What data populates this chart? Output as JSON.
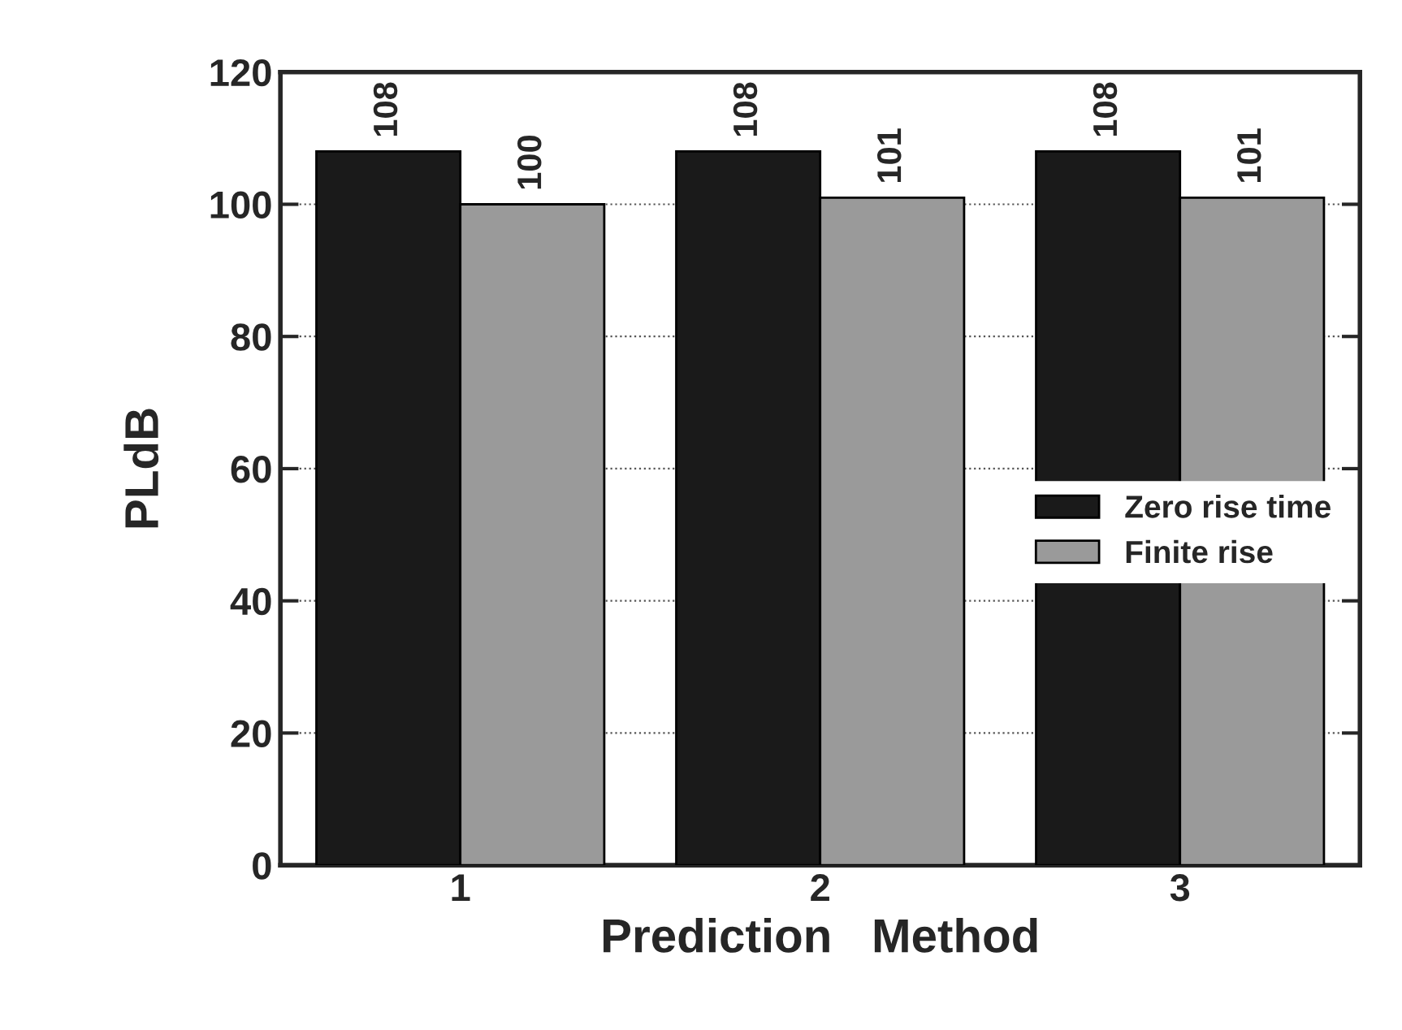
{
  "chart_data": {
    "type": "bar",
    "xlabel": "Prediction   Method",
    "ylabel": "PLdB",
    "categories": [
      "1",
      "2",
      "3"
    ],
    "series": [
      {
        "name": "Zero rise time",
        "color": "#1a1a1a",
        "values": [
          108,
          108,
          108
        ]
      },
      {
        "name": "Finite rise",
        "color": "#9a9a9a",
        "values": [
          100,
          101,
          101
        ]
      }
    ],
    "ylim": [
      0,
      120
    ],
    "yticks": [
      0,
      20,
      40,
      60,
      80,
      100,
      120
    ],
    "grid": "y",
    "legend": "right",
    "data_labels": true
  }
}
